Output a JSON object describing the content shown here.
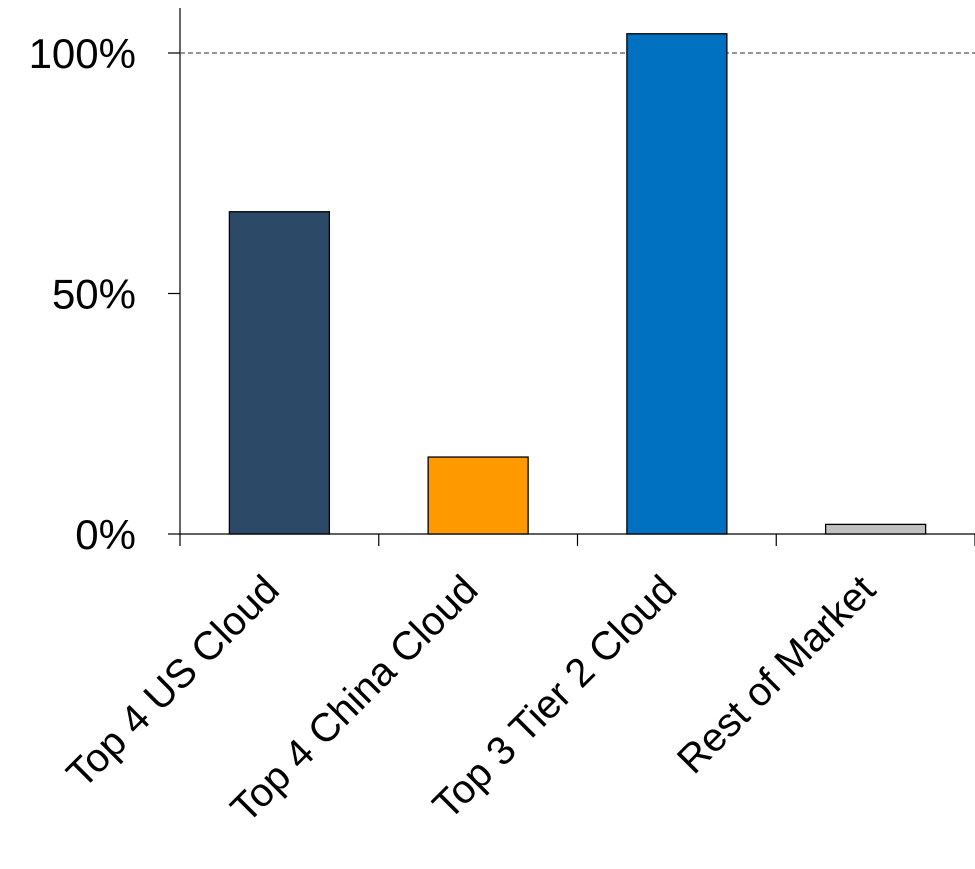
{
  "chart_data": {
    "type": "bar",
    "title": "",
    "xlabel": "",
    "ylabel": "",
    "categories": [
      "Top 4 US Cloud",
      "Top 4 China Cloud",
      "Top 3 Tier 2 Cloud",
      "Rest of Market"
    ],
    "values": [
      67,
      16,
      104,
      2
    ],
    "colors": [
      "#2c4a68",
      "#ff9900",
      "#0070c0",
      "#c0c0c0"
    ],
    "ylim": [
      0,
      110
    ],
    "yticks": [
      0,
      50,
      100
    ],
    "ytick_labels": [
      "0%",
      "50%",
      "100%"
    ],
    "reference_line": {
      "value": 100,
      "style": "dashed"
    },
    "grid": false,
    "legend": "none"
  }
}
